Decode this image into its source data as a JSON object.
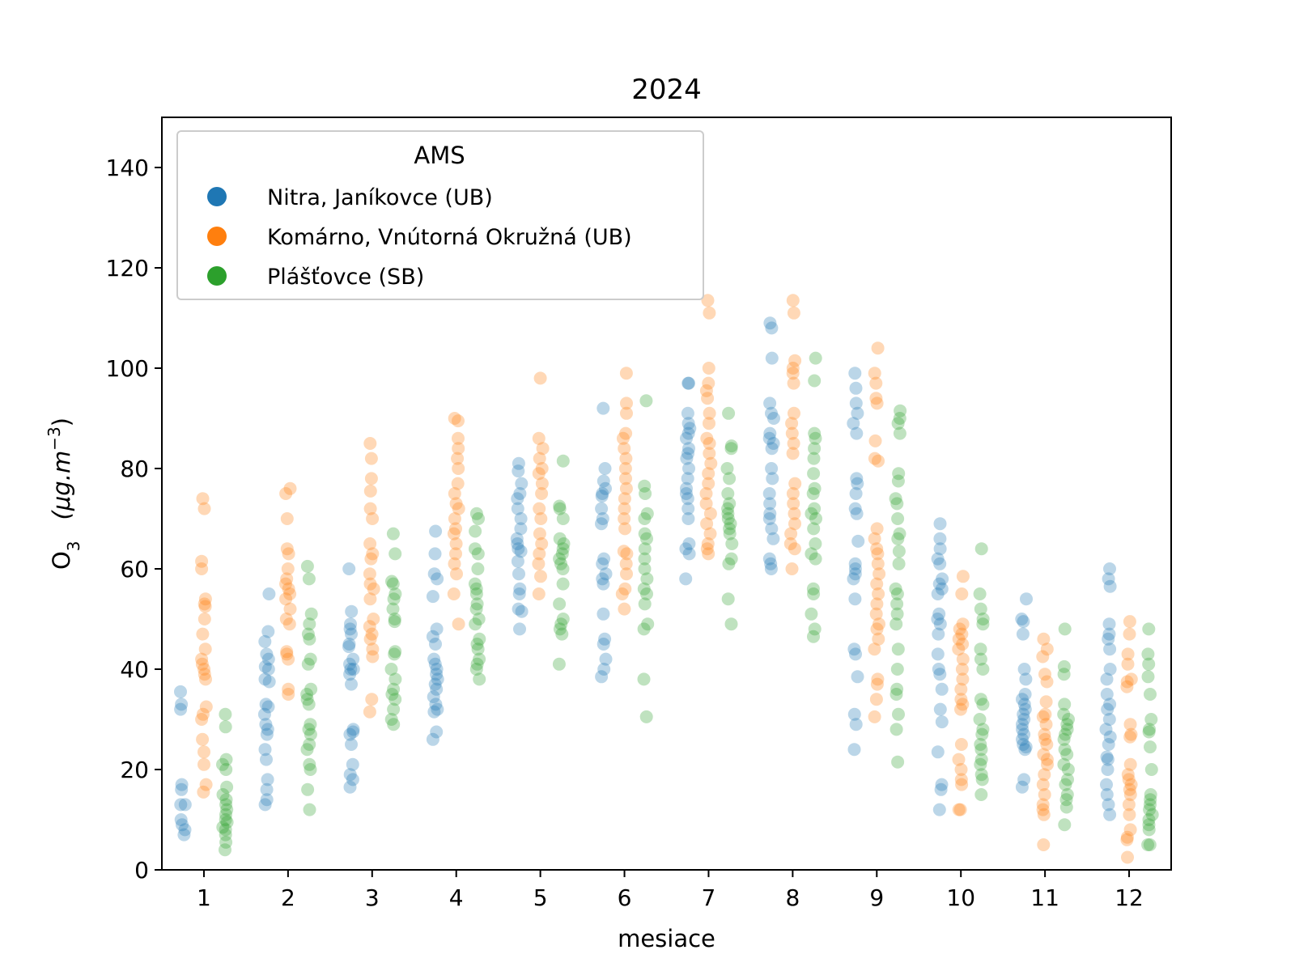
{
  "chart_data": {
    "type": "scatter",
    "title": "2024",
    "xlabel": "mesiace",
    "ylabel_main": "O",
    "ylabel_sub": "3",
    "ylabel_unit_open": "(μg.m",
    "ylabel_unit_sup": "−3",
    "ylabel_unit_close": ")",
    "categories": [
      "1",
      "2",
      "3",
      "4",
      "5",
      "6",
      "7",
      "8",
      "9",
      "10",
      "11",
      "12"
    ],
    "ylim": [
      0,
      150
    ],
    "yticks": [
      0,
      20,
      40,
      60,
      80,
      100,
      120,
      140
    ],
    "grid": false,
    "legend": {
      "title": "AMS",
      "placement": "top-left"
    },
    "series": [
      {
        "name": "Nitra, Janíkovce (UB)",
        "color": "#1f77b4",
        "offset": -0.25,
        "values": [
          [
            35.5,
            33,
            32,
            17,
            16,
            13,
            13,
            10,
            9,
            8,
            7
          ],
          [
            55,
            47.5,
            45.5,
            43,
            42,
            40.5,
            40,
            38,
            37.5,
            33,
            32.5,
            31,
            29,
            28,
            27,
            24,
            22,
            18,
            16,
            14,
            13
          ],
          [
            60,
            51.5,
            49,
            48,
            47,
            45,
            44.5,
            42,
            41,
            40,
            40,
            39,
            37,
            28,
            27.5,
            27,
            25,
            21,
            19,
            18,
            16.5
          ],
          [
            67.5,
            63,
            59,
            58,
            54.5,
            48,
            46.5,
            45,
            42,
            41,
            40,
            39,
            38,
            37,
            36,
            34.5,
            33,
            32,
            31.5,
            27.5,
            26
          ],
          [
            81,
            79.5,
            77,
            75,
            74,
            72,
            70,
            68,
            66,
            65,
            64,
            63.5,
            61.5,
            59,
            56,
            55,
            52,
            51.5,
            48
          ],
          [
            92,
            80,
            77.5,
            76,
            75,
            74.5,
            72,
            70,
            69,
            62,
            61,
            59,
            58,
            57,
            51,
            46,
            45,
            42,
            40,
            38.5
          ],
          [
            97,
            97,
            91,
            89,
            88,
            87,
            86,
            84,
            83,
            82,
            80,
            78,
            76,
            75,
            74,
            72,
            70,
            65,
            64,
            63,
            58
          ],
          [
            109,
            108,
            102,
            93,
            91,
            90,
            87,
            86,
            85,
            84,
            80,
            78,
            75,
            73,
            71,
            70,
            68,
            66,
            62,
            61,
            60
          ],
          [
            99,
            96,
            93,
            91,
            89,
            87,
            78,
            77,
            75,
            72,
            71,
            65.5,
            61,
            60,
            59,
            58,
            54,
            44,
            43,
            38.5,
            31,
            29,
            24
          ],
          [
            69,
            66,
            64,
            62,
            61,
            58,
            57,
            56,
            55,
            51,
            50,
            49,
            47,
            43,
            40,
            39,
            36,
            32,
            29.5,
            23.5,
            17,
            16,
            12
          ],
          [
            54,
            50,
            49.5,
            47,
            40,
            38,
            35,
            34,
            33,
            32,
            31,
            30,
            29,
            28,
            27,
            26,
            25,
            24.5,
            24,
            18,
            16.5
          ],
          [
            60,
            58,
            56.5,
            49,
            47,
            46,
            44,
            40,
            38,
            35,
            33,
            32,
            30,
            28,
            26.5,
            25,
            22.5,
            22,
            20,
            17,
            15,
            13,
            11
          ]
        ]
      },
      {
        "name": "Komárno, Vnútorná Okružná (UB)",
        "color": "#ff7f0e",
        "offset": 0,
        "values": [
          [
            74,
            72,
            61.5,
            60,
            54,
            53,
            52.5,
            50,
            47,
            44,
            42,
            41,
            40,
            39,
            38,
            32.5,
            31,
            30,
            26,
            23.5,
            21,
            17,
            15.5
          ],
          [
            76,
            75,
            70,
            64,
            63,
            60,
            58,
            57,
            56,
            55,
            54,
            52,
            50,
            49,
            43.5,
            43,
            42,
            36,
            35
          ],
          [
            85,
            82,
            78,
            75.5,
            72,
            70,
            65,
            63,
            62,
            59,
            57,
            56,
            54,
            50,
            48.5,
            47,
            46,
            44,
            42.5,
            34,
            31.5
          ],
          [
            90,
            89.5,
            86,
            84,
            82,
            80,
            77,
            75,
            73,
            72,
            70,
            68,
            67,
            65,
            63,
            61,
            59,
            55,
            49
          ],
          [
            98,
            86,
            84,
            82,
            80,
            79,
            77,
            75,
            72,
            70,
            67,
            65,
            63,
            61,
            58.5,
            55
          ],
          [
            99,
            93,
            91,
            87,
            86,
            84,
            82,
            80,
            78,
            76,
            74,
            72,
            70,
            68,
            63.5,
            63,
            61,
            59,
            56,
            55,
            52
          ],
          [
            113.5,
            111,
            100,
            97,
            95.5,
            94,
            91,
            89,
            86,
            85,
            83,
            81,
            79,
            77,
            75,
            73,
            71,
            69,
            67,
            65,
            64,
            63
          ],
          [
            113.5,
            111,
            101.5,
            100,
            99,
            97,
            91,
            89,
            87,
            85,
            83,
            77,
            75,
            73,
            71,
            69,
            67,
            65,
            64,
            60
          ],
          [
            104,
            99,
            97,
            94,
            93,
            85.5,
            82,
            81.5,
            68,
            66,
            64,
            63,
            61,
            59,
            57,
            55,
            53,
            51,
            49,
            48,
            46,
            44,
            38,
            37,
            34,
            30.5
          ],
          [
            58.5,
            55,
            49,
            48,
            47,
            46,
            45,
            44,
            42,
            40,
            38,
            36,
            34,
            33,
            32,
            25,
            22,
            20,
            18,
            17,
            12,
            12
          ],
          [
            46,
            44,
            42.5,
            39,
            37.5,
            33.5,
            31,
            30.5,
            29,
            27,
            26,
            25,
            23,
            22,
            21,
            19,
            17,
            15,
            13,
            12,
            11,
            5
          ],
          [
            49.5,
            47,
            43,
            41,
            38,
            37.5,
            36.5,
            29,
            27,
            26.5,
            21,
            19,
            18,
            17,
            16,
            15,
            13,
            11,
            8,
            6.5,
            6,
            2.5
          ]
        ]
      },
      {
        "name": "Plášťovce (SB)",
        "color": "#2ca02c",
        "offset": 0.25,
        "values": [
          [
            31,
            28.5,
            22,
            21,
            20,
            16.5,
            15,
            14,
            13,
            12,
            11,
            10,
            9.5,
            8.5,
            8,
            7,
            5.5,
            4
          ],
          [
            60.5,
            58,
            51,
            49,
            47,
            46,
            42,
            41,
            36,
            35,
            34,
            33,
            29,
            28,
            27,
            25,
            24,
            21,
            20,
            16,
            12
          ],
          [
            67,
            63,
            57.5,
            57,
            55,
            54,
            52,
            50,
            49.5,
            43.5,
            43,
            40,
            38,
            36,
            35,
            34,
            32,
            30,
            29
          ],
          [
            71,
            70,
            67.5,
            64,
            63,
            60,
            57,
            56,
            55,
            53,
            52,
            50,
            49,
            46,
            45,
            44,
            42,
            41,
            40,
            38
          ],
          [
            81.5,
            72.5,
            72,
            70,
            66,
            65,
            64,
            63,
            62,
            61,
            60,
            57,
            53,
            50,
            49,
            48,
            47,
            41
          ],
          [
            93.5,
            76.5,
            75,
            71,
            70,
            67,
            66,
            64,
            62,
            60,
            58,
            56,
            55,
            53,
            49,
            48,
            38,
            30.5
          ],
          [
            91,
            84.5,
            84,
            80,
            78,
            75,
            73,
            72,
            71,
            70,
            69,
            68,
            67,
            65,
            62,
            61,
            54,
            49
          ],
          [
            102,
            97.5,
            87,
            86,
            84,
            82,
            79,
            76,
            75,
            72,
            71,
            70,
            68,
            65,
            63,
            62,
            56,
            55,
            51,
            48,
            46.5
          ],
          [
            91.5,
            90,
            89,
            87,
            79,
            77.5,
            74,
            73,
            70,
            67,
            66,
            63.5,
            61,
            56,
            55,
            53,
            51,
            49,
            44,
            40,
            36,
            35,
            31,
            28,
            21.5
          ],
          [
            64,
            55,
            52,
            50,
            49,
            44,
            42,
            40,
            34,
            33,
            30,
            28,
            27,
            25,
            24,
            22,
            21,
            19,
            18,
            15
          ],
          [
            48,
            40.5,
            39,
            33,
            31,
            30,
            29,
            28,
            27,
            26,
            24,
            23,
            21,
            20,
            18,
            17,
            15,
            14,
            12.5,
            9
          ],
          [
            48,
            43,
            41,
            38.5,
            35,
            30,
            28,
            27.5,
            24.5,
            20,
            15,
            14,
            13,
            12,
            11,
            10,
            9,
            8,
            5,
            5
          ]
        ]
      }
    ]
  }
}
